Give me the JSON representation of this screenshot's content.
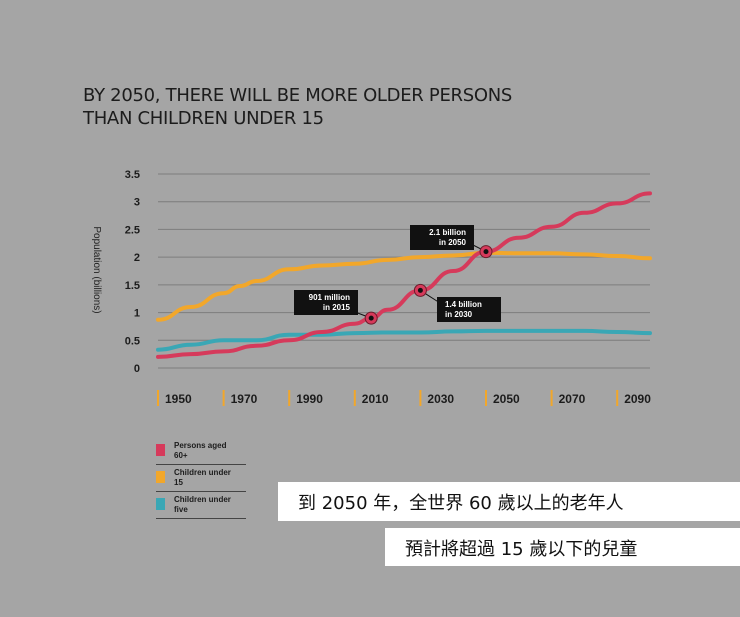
{
  "title_lines": [
    "BY 2050, THERE WILL BE MORE OLDER PERSONS",
    "THAN CHILDREN UNDER 15"
  ],
  "chart_data": {
    "type": "line",
    "title": "BY 2050, THERE WILL BE MORE OLDER PERSONS THAN CHILDREN UNDER 15",
    "ylabel": "Population (billions)",
    "xlabel": "",
    "ylim": [
      0,
      3.5
    ],
    "xlim": [
      1950,
      2100
    ],
    "yticks": [
      "0",
      "0.5",
      "1",
      "1.5",
      "2",
      "2.5",
      "3",
      "3.5"
    ],
    "xticks": [
      "1950",
      "1970",
      "1990",
      "2010",
      "2030",
      "2050",
      "2070",
      "2090"
    ],
    "grid": true,
    "series": [
      {
        "name": "Persons aged 60+",
        "color": "#d63a5b",
        "x": [
          1950,
          1960,
          1970,
          1980,
          1990,
          2000,
          2010,
          2015,
          2020,
          2030,
          2040,
          2050,
          2060,
          2070,
          2080,
          2090,
          2100
        ],
        "y": [
          0.2,
          0.25,
          0.3,
          0.4,
          0.5,
          0.65,
          0.8,
          0.9,
          1.05,
          1.4,
          1.75,
          2.1,
          2.35,
          2.55,
          2.8,
          2.97,
          3.15
        ]
      },
      {
        "name": "Children under 15",
        "color": "#f2a72a",
        "x": [
          1950,
          1960,
          1970,
          1975,
          1980,
          1990,
          2000,
          2010,
          2020,
          2030,
          2040,
          2050,
          2060,
          2070,
          2080,
          2090,
          2100
        ],
        "y": [
          0.87,
          1.1,
          1.35,
          1.48,
          1.57,
          1.78,
          1.85,
          1.88,
          1.95,
          2.0,
          2.03,
          2.08,
          2.07,
          2.07,
          2.05,
          2.02,
          1.98
        ]
      },
      {
        "name": "Children under five",
        "color": "#3aa7b5",
        "x": [
          1950,
          1960,
          1970,
          1980,
          1990,
          2000,
          2010,
          2020,
          2030,
          2040,
          2050,
          2060,
          2070,
          2080,
          2090,
          2100
        ],
        "y": [
          0.33,
          0.42,
          0.5,
          0.5,
          0.6,
          0.6,
          0.63,
          0.64,
          0.64,
          0.66,
          0.67,
          0.67,
          0.67,
          0.67,
          0.65,
          0.63
        ]
      }
    ],
    "annotations": [
      {
        "text": [
          "901 million",
          "in 2015"
        ],
        "x": 2015,
        "y": 0.9
      },
      {
        "text": [
          "1.4 billion",
          "in 2030"
        ],
        "x": 2030,
        "y": 1.4
      },
      {
        "text": [
          "2.1 billion",
          "in 2050"
        ],
        "x": 2050,
        "y": 2.1
      }
    ]
  },
  "legend": [
    {
      "label": "Persons aged 60+",
      "color": "#d63a5b"
    },
    {
      "label": "Children under 15",
      "color": "#f2a72a"
    },
    {
      "label": "Children under five",
      "color": "#3aa7b5"
    }
  ],
  "captions": [
    "到 2050 年，全世界 60 歲以上的老年人",
    "預計將超過 15 歲以下的兒童"
  ]
}
